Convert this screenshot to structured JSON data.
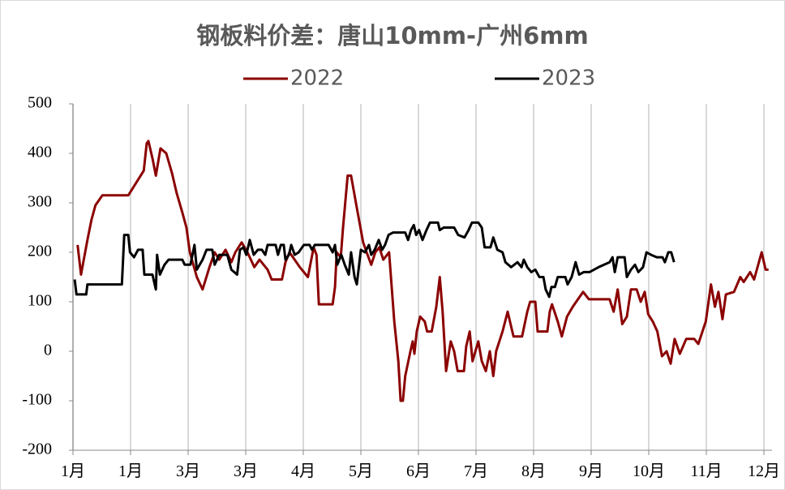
{
  "chart_data": {
    "type": "line",
    "title": "钢板料价差：唐山10mm-广州6mm",
    "xlim": [
      0,
      12
    ],
    "xticks": [
      {
        "value": 0,
        "label": "1月"
      },
      {
        "value": 1,
        "label": "1月"
      },
      {
        "value": 2,
        "label": "3月"
      },
      {
        "value": 3,
        "label": "3月"
      },
      {
        "value": 4,
        "label": "4月"
      },
      {
        "value": 5,
        "label": "5月"
      },
      {
        "value": 6,
        "label": "6月"
      },
      {
        "value": 7,
        "label": "7月"
      },
      {
        "value": 8,
        "label": "8月"
      },
      {
        "value": 9,
        "label": "9月"
      },
      {
        "value": 10,
        "label": "10月"
      },
      {
        "value": 11,
        "label": "11月"
      },
      {
        "value": 12,
        "label": "12月"
      }
    ],
    "ylim": [
      -200,
      500
    ],
    "yticks": [
      -200,
      -100,
      0,
      100,
      200,
      300,
      400,
      500
    ],
    "grid": true,
    "legend": "top",
    "series": [
      {
        "name": "2022",
        "color": "#8b0000",
        "x": [
          0.08,
          0.14,
          0.25,
          0.32,
          0.39,
          0.51,
          0.96,
          1.23,
          1.28,
          1.31,
          1.38,
          1.44,
          1.52,
          1.62,
          1.72,
          1.8,
          1.9,
          1.97,
          2.03,
          2.15,
          2.25,
          2.37,
          2.46,
          2.54,
          2.65,
          2.75,
          2.82,
          2.93,
          3.03,
          3.15,
          3.24,
          3.38,
          3.45,
          3.63,
          3.69,
          3.76,
          3.94,
          4.08,
          4.18,
          4.23,
          4.27,
          4.51,
          4.55,
          4.58,
          4.65,
          4.69,
          4.77,
          4.83,
          4.93,
          5.04,
          5.1,
          5.18,
          5.25,
          5.32,
          5.39,
          5.49,
          5.58,
          5.65,
          5.69,
          5.73,
          5.77,
          5.86,
          5.9,
          5.93,
          5.97,
          6.03,
          6.11,
          6.15,
          6.23,
          6.31,
          6.37,
          6.42,
          6.48,
          6.56,
          6.62,
          6.68,
          6.79,
          6.83,
          6.89,
          6.94,
          7.04,
          7.1,
          7.17,
          7.24,
          7.3,
          7.35,
          7.46,
          7.55,
          7.65,
          7.8,
          7.89,
          7.94,
          8.03,
          8.07,
          8.24,
          8.28,
          8.32,
          8.42,
          8.49,
          8.58,
          8.68,
          8.77,
          8.86,
          8.96,
          9.32,
          9.39,
          9.46,
          9.54,
          9.62,
          9.69,
          9.79,
          9.86,
          9.93,
          9.99,
          10.07,
          10.15,
          10.23,
          10.31,
          10.38,
          10.45,
          10.54,
          10.65,
          10.79,
          10.86,
          10.99,
          11.08,
          11.15,
          11.21,
          11.28,
          11.34,
          11.48,
          11.59,
          11.65,
          11.76,
          11.83,
          11.96,
          12.03,
          12.08
        ],
        "values": [
          215,
          155,
          225,
          265,
          295,
          315,
          315,
          365,
          420,
          425,
          390,
          355,
          410,
          400,
          360,
          320,
          280,
          250,
          200,
          150,
          125,
          170,
          200,
          185,
          205,
          180,
          200,
          220,
          200,
          170,
          185,
          165,
          145,
          145,
          180,
          200,
          170,
          150,
          210,
          195,
          95,
          95,
          130,
          200,
          190,
          250,
          355,
          355,
          290,
          220,
          200,
          175,
          200,
          210,
          185,
          200,
          60,
          -20,
          -100,
          -100,
          -50,
          0,
          20,
          -5,
          40,
          70,
          60,
          40,
          40,
          90,
          150,
          80,
          -40,
          20,
          0,
          -40,
          -40,
          10,
          40,
          -20,
          20,
          -20,
          -40,
          0,
          -50,
          0,
          40,
          80,
          30,
          30,
          80,
          100,
          100,
          40,
          40,
          80,
          95,
          60,
          30,
          70,
          90,
          105,
          120,
          105,
          105,
          80,
          125,
          55,
          70,
          125,
          125,
          100,
          120,
          75,
          60,
          40,
          -10,
          0,
          -25,
          25,
          -5,
          25,
          25,
          15,
          60,
          135,
          90,
          120,
          65,
          115,
          120,
          150,
          140,
          160,
          145,
          200,
          165,
          165
        ]
      },
      {
        "name": "2023",
        "color": "#000000",
        "x": [
          0.03,
          0.06,
          0.23,
          0.25,
          0.85,
          0.89,
          0.96,
          0.99,
          1.06,
          1.13,
          1.21,
          1.24,
          1.38,
          1.44,
          1.46,
          1.51,
          1.59,
          1.66,
          1.9,
          1.94,
          2.04,
          2.11,
          2.15,
          2.25,
          2.32,
          2.42,
          2.46,
          2.54,
          2.68,
          2.75,
          2.85,
          2.9,
          2.96,
          3.01,
          3.07,
          3.14,
          3.21,
          3.28,
          3.34,
          3.38,
          3.52,
          3.56,
          3.61,
          3.66,
          3.69,
          3.75,
          3.79,
          3.85,
          3.92,
          4.01,
          4.11,
          4.15,
          4.2,
          4.44,
          4.51,
          4.55,
          4.59,
          4.66,
          4.72,
          4.79,
          4.83,
          4.89,
          4.93,
          5.0,
          5.07,
          5.14,
          5.18,
          5.24,
          5.31,
          5.37,
          5.42,
          5.48,
          5.56,
          5.77,
          5.82,
          5.87,
          5.92,
          5.96,
          6.01,
          6.07,
          6.14,
          6.2,
          6.34,
          6.37,
          6.44,
          6.62,
          6.69,
          6.8,
          6.87,
          6.93,
          7.04,
          7.1,
          7.15,
          7.25,
          7.3,
          7.37,
          7.46,
          7.51,
          7.61,
          7.72,
          7.79,
          7.83,
          7.89,
          7.96,
          8.03,
          8.1,
          8.17,
          8.21,
          8.27,
          8.31,
          8.37,
          8.42,
          8.55,
          8.59,
          8.66,
          8.73,
          8.79,
          8.87,
          8.97,
          9.13,
          9.32,
          9.37,
          9.41,
          9.46,
          9.58,
          9.62,
          9.69,
          9.76,
          9.82,
          9.9,
          9.96,
          10.04,
          10.14,
          10.24,
          10.28,
          10.34,
          10.39,
          10.44
        ],
        "values": [
          145,
          115,
          115,
          135,
          135,
          235,
          235,
          200,
          190,
          205,
          205,
          155,
          155,
          125,
          195,
          155,
          175,
          185,
          185,
          175,
          175,
          215,
          165,
          185,
          205,
          205,
          175,
          195,
          195,
          165,
          155,
          205,
          210,
          195,
          225,
          195,
          205,
          205,
          195,
          215,
          215,
          195,
          215,
          215,
          185,
          195,
          215,
          195,
          200,
          215,
          215,
          205,
          215,
          215,
          200,
          215,
          175,
          195,
          175,
          155,
          200,
          150,
          135,
          205,
          200,
          215,
          195,
          205,
          225,
          205,
          215,
          235,
          240,
          240,
          225,
          245,
          255,
          235,
          245,
          225,
          245,
          260,
          260,
          245,
          250,
          250,
          235,
          230,
          245,
          260,
          260,
          250,
          210,
          210,
          230,
          205,
          200,
          180,
          170,
          180,
          170,
          185,
          170,
          160,
          165,
          150,
          150,
          125,
          110,
          130,
          130,
          150,
          150,
          135,
          150,
          180,
          155,
          160,
          160,
          170,
          180,
          190,
          160,
          190,
          190,
          150,
          165,
          175,
          160,
          170,
          200,
          195,
          190,
          190,
          180,
          200,
          200,
          180
        ]
      }
    ]
  }
}
